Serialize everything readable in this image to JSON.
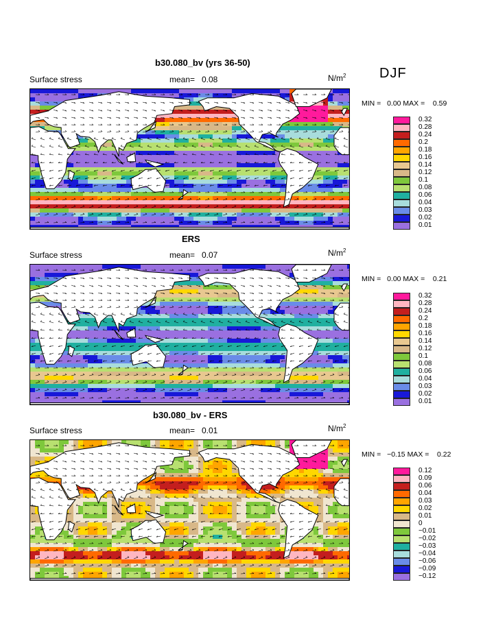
{
  "season": "DJF",
  "panels": [
    {
      "title": "b30.080_bv (yrs 36-50)",
      "variable": "Surface stress",
      "mean_label": "mean=",
      "mean": "0.08",
      "units_base": "N/m",
      "units_exp": "2",
      "min_label": "MIN =",
      "min": "0.00",
      "max_label": "MAX =",
      "max": "0.59",
      "legend": {
        "labels": [
          "0.32",
          "0.28",
          "0.24",
          "0.2",
          "0.18",
          "0.16",
          "0.14",
          "0.12",
          "0.1",
          "0.08",
          "0.06",
          "0.04",
          "0.03",
          "0.02",
          "0.01"
        ],
        "colors": [
          "#ff1a9c",
          "#ffb6c1",
          "#c41e1e",
          "#ff6a00",
          "#ffa500",
          "#ffd700",
          "#e8c890",
          "#d8b888",
          "#7ec83c",
          "#b8e070",
          "#20b0a0",
          "#a8dcdc",
          "#6a8ce8",
          "#1818d8",
          "#9a70e0"
        ]
      },
      "field": "model"
    },
    {
      "title": "ERS",
      "variable": "Surface stress",
      "mean_label": "mean=",
      "mean": "0.07",
      "units_base": "N/m",
      "units_exp": "2",
      "min_label": "MIN =",
      "min": "0.00",
      "max_label": "MAX =",
      "max": "0.21",
      "legend": {
        "labels": [
          "0.32",
          "0.28",
          "0.24",
          "0.2",
          "0.18",
          "0.16",
          "0.14",
          "0.12",
          "0.1",
          "0.08",
          "0.06",
          "0.04",
          "0.03",
          "0.02",
          "0.01"
        ],
        "colors": [
          "#ff1a9c",
          "#ffb6c1",
          "#c41e1e",
          "#ff6a00",
          "#ffa500",
          "#ffd700",
          "#e8c890",
          "#d8b888",
          "#7ec83c",
          "#b8e070",
          "#20b0a0",
          "#a8dcdc",
          "#6a8ce8",
          "#1818d8",
          "#9a70e0"
        ]
      },
      "field": "obs"
    },
    {
      "title": "b30.080_bv - ERS",
      "variable": "Surface stress",
      "mean_label": "mean=",
      "mean": "0.01",
      "units_base": "N/m",
      "units_exp": "2",
      "min_label": "MIN =",
      "min": "−0.15",
      "max_label": "MAX =",
      "max": "0.22",
      "legend": {
        "labels": [
          "0.12",
          "0.09",
          "0.06",
          "0.04",
          "0.03",
          "0.02",
          "0.01",
          "0",
          "−0.01",
          "−0.02",
          "−0.03",
          "−0.04",
          "−0.06",
          "−0.09",
          "−0.12"
        ],
        "colors": [
          "#ff1a9c",
          "#ffb6c1",
          "#c41e1e",
          "#ff6a00",
          "#ffa500",
          "#ffd700",
          "#d8b888",
          "#f0e6d0",
          "#7ec83c",
          "#b8e070",
          "#20b0a0",
          "#a8dcdc",
          "#6a8ce8",
          "#1818d8",
          "#9a70e0"
        ]
      },
      "field": "diff"
    }
  ],
  "chart_data": [
    {
      "type": "heatmap",
      "title": "b30.080_bv (yrs 36-50)",
      "subtitle": "Surface stress",
      "units": "N/m2",
      "mean": 0.08,
      "min": 0.0,
      "max": 0.59,
      "contour_levels": [
        0.01,
        0.02,
        0.03,
        0.04,
        0.06,
        0.08,
        0.1,
        0.12,
        0.14,
        0.16,
        0.18,
        0.2,
        0.24,
        0.28,
        0.32
      ],
      "overlay": "wind stress vectors",
      "x": "longitude 0-360",
      "y": "latitude -80..80"
    },
    {
      "type": "heatmap",
      "title": "ERS",
      "subtitle": "Surface stress",
      "units": "N/m2",
      "mean": 0.07,
      "min": 0.0,
      "max": 0.21,
      "contour_levels": [
        0.01,
        0.02,
        0.03,
        0.04,
        0.06,
        0.08,
        0.1,
        0.12,
        0.14,
        0.16,
        0.18,
        0.2,
        0.24,
        0.28,
        0.32
      ],
      "overlay": "wind stress vectors",
      "x": "longitude 0-360",
      "y": "latitude -80..80"
    },
    {
      "type": "heatmap",
      "title": "b30.080_bv - ERS",
      "subtitle": "Surface stress",
      "units": "N/m2",
      "mean": 0.01,
      "min": -0.15,
      "max": 0.22,
      "contour_levels": [
        -0.12,
        -0.09,
        -0.06,
        -0.04,
        -0.03,
        -0.02,
        -0.01,
        0,
        0.01,
        0.02,
        0.03,
        0.04,
        0.06,
        0.09,
        0.12
      ],
      "overlay": "wind stress difference vectors",
      "x": "longitude 0-360",
      "y": "latitude -80..80"
    }
  ]
}
